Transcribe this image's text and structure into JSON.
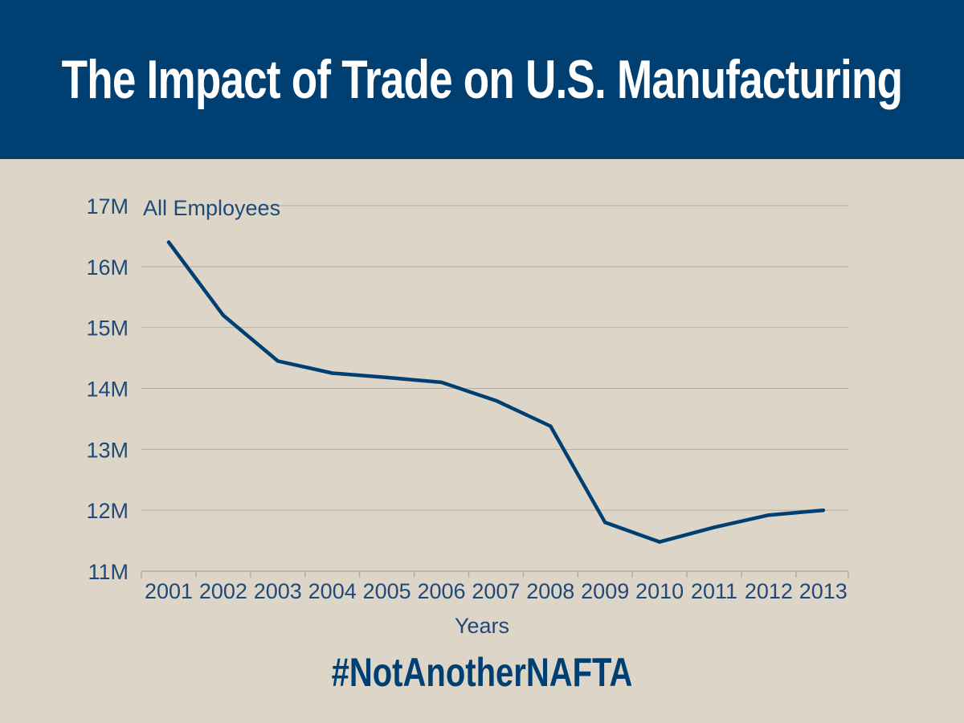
{
  "header": {
    "title": "The Impact of Trade on U.S. Manufacturing"
  },
  "footer": {
    "hashtag": "#NotAnotherNAFTA"
  },
  "colors": {
    "banner": "#003f72",
    "background": "#ddd5c8",
    "line": "#003f72",
    "grid": "#b8ac9e",
    "text": "#1f4a78"
  },
  "chart_data": {
    "type": "line",
    "title": "The Impact of Trade on U.S. Manufacturing",
    "series_label": "All Employees",
    "xlabel": "Years",
    "ylabel": "",
    "categories": [
      "2001",
      "2002",
      "2003",
      "2004",
      "2005",
      "2006",
      "2007",
      "2008",
      "2009",
      "2010",
      "2011",
      "2012",
      "2013"
    ],
    "values": [
      16.4,
      15.2,
      14.45,
      14.25,
      14.18,
      14.1,
      13.8,
      13.38,
      11.8,
      11.48,
      11.72,
      11.92,
      12.0
    ],
    "ylim": [
      11,
      17
    ],
    "yticks": [
      11,
      12,
      13,
      14,
      15,
      16,
      17
    ],
    "ytick_labels": [
      "11M",
      "12M",
      "13M",
      "14M",
      "15M",
      "16M",
      "17M"
    ],
    "grid": true,
    "legend": "none"
  }
}
